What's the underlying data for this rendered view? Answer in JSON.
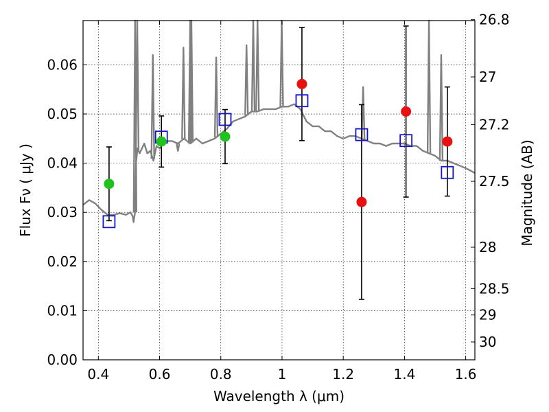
{
  "chart_data": {
    "type": "scatter",
    "xlabel": "Wavelength  λ (μm)",
    "ylabel": "Flux  Fν  ( μJy )",
    "y2label": "Magnitude (AB)",
    "xlim": [
      0.35,
      1.63
    ],
    "ylim": [
      0.0,
      0.069
    ],
    "grid": true,
    "x_ticks": [
      "0.4",
      "0.6",
      "0.8",
      "1",
      "1.2",
      "1.4",
      "1.6"
    ],
    "y_ticks": [
      "0.00",
      "0.01",
      "0.02",
      "0.03",
      "0.04",
      "0.05",
      "0.06"
    ],
    "mag_ticks": [
      {
        "label": "26.8",
        "mag": 26.8
      },
      {
        "label": "27",
        "mag": 27.0
      },
      {
        "label": "27.2",
        "mag": 27.2
      },
      {
        "label": "27.5",
        "mag": 27.5
      },
      {
        "label": "28",
        "mag": 28.0
      },
      {
        "label": "28.5",
        "mag": 28.5
      },
      {
        "label": "29",
        "mag": 29.0
      },
      {
        "label": "30",
        "mag": 30.0
      }
    ],
    "observed_optical": {
      "color": "#1ec31e",
      "points": [
        {
          "x": 0.435,
          "y": 0.0358,
          "err": 0.0075
        },
        {
          "x": 0.606,
          "y": 0.0444,
          "err": 0.0052
        },
        {
          "x": 0.814,
          "y": 0.0454,
          "err": 0.0055
        }
      ]
    },
    "observed_nir": {
      "color": "#e81010",
      "points": [
        {
          "x": 1.065,
          "y": 0.0561,
          "err": 0.0115
        },
        {
          "x": 1.26,
          "y": 0.0321,
          "err": 0.0198
        },
        {
          "x": 1.405,
          "y": 0.0505,
          "err": 0.0174
        },
        {
          "x": 1.54,
          "y": 0.0444,
          "err": 0.0111
        }
      ]
    },
    "model_points": {
      "color": "#1414c8",
      "points": [
        {
          "x": 0.435,
          "y": 0.0281
        },
        {
          "x": 0.606,
          "y": 0.0453
        },
        {
          "x": 0.814,
          "y": 0.0489
        },
        {
          "x": 1.065,
          "y": 0.0527
        },
        {
          "x": 1.26,
          "y": 0.0458
        },
        {
          "x": 1.405,
          "y": 0.0446
        },
        {
          "x": 1.54,
          "y": 0.0381
        }
      ]
    },
    "model_spectrum": {
      "color": "#808080",
      "x": [
        0.35,
        0.37,
        0.39,
        0.41,
        0.43,
        0.45,
        0.47,
        0.49,
        0.505,
        0.512,
        0.515,
        0.52,
        0.523,
        0.528,
        0.535,
        0.55,
        0.56,
        0.57,
        0.58,
        0.59,
        0.6,
        0.62,
        0.64,
        0.66,
        0.68,
        0.7,
        0.72,
        0.74,
        0.76,
        0.78,
        0.8,
        0.82,
        0.84,
        0.86,
        0.88,
        0.9,
        0.92,
        0.94,
        0.96,
        0.98,
        1.0,
        1.02,
        1.04,
        1.06,
        1.08,
        1.1,
        1.12,
        1.14,
        1.16,
        1.18,
        1.2,
        1.22,
        1.24,
        1.26,
        1.28,
        1.3,
        1.32,
        1.34,
        1.36,
        1.38,
        1.4,
        1.42,
        1.44,
        1.46,
        1.48,
        1.5,
        1.52,
        1.54,
        1.56,
        1.58,
        1.6,
        1.63
      ],
      "y": [
        0.0315,
        0.0325,
        0.0318,
        0.0305,
        0.0295,
        0.0295,
        0.0298,
        0.0295,
        0.03,
        0.0292,
        0.028,
        0.03,
        0.04,
        0.043,
        0.042,
        0.044,
        0.042,
        0.0425,
        0.0405,
        0.0435,
        0.043,
        0.0445,
        0.0445,
        0.044,
        0.045,
        0.044,
        0.045,
        0.044,
        0.0445,
        0.045,
        0.046,
        0.047,
        0.0485,
        0.049,
        0.0495,
        0.0505,
        0.0505,
        0.051,
        0.051,
        0.051,
        0.0515,
        0.0515,
        0.052,
        0.051,
        0.0485,
        0.0475,
        0.0475,
        0.0465,
        0.0465,
        0.0455,
        0.045,
        0.0455,
        0.0455,
        0.045,
        0.0445,
        0.044,
        0.044,
        0.0435,
        0.044,
        0.044,
        0.044,
        0.0435,
        0.0435,
        0.0425,
        0.042,
        0.0415,
        0.0405,
        0.0405,
        0.04,
        0.0395,
        0.039,
        0.038
      ],
      "emission_lines": [
        {
          "x": 0.52,
          "y": 0.069
        },
        {
          "x": 0.527,
          "y": 0.069
        },
        {
          "x": 0.578,
          "y": 0.062
        },
        {
          "x": 0.66,
          "y": 0.0425
        },
        {
          "x": 0.678,
          "y": 0.0635
        },
        {
          "x": 0.7,
          "y": 0.069
        },
        {
          "x": 0.704,
          "y": 0.069
        },
        {
          "x": 0.785,
          "y": 0.0615
        },
        {
          "x": 0.884,
          "y": 0.064
        },
        {
          "x": 0.906,
          "y": 0.069
        },
        {
          "x": 0.92,
          "y": 0.069
        },
        {
          "x": 0.999,
          "y": 0.069
        },
        {
          "x": 1.265,
          "y": 0.0555
        },
        {
          "x": 1.48,
          "y": 0.069
        },
        {
          "x": 1.52,
          "y": 0.062
        }
      ]
    }
  }
}
